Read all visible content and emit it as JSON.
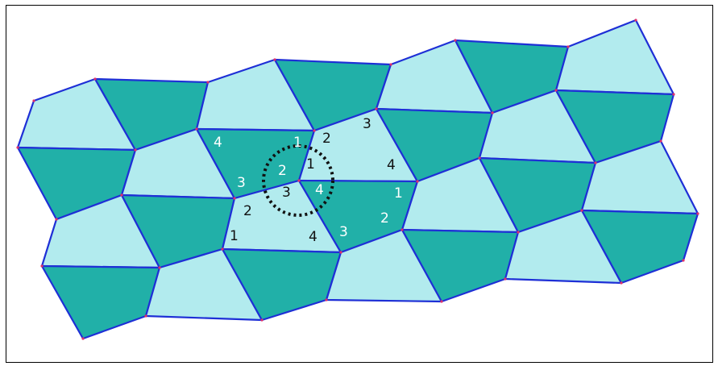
{
  "colors": {
    "light": "#b2ebee",
    "dark": "#21b0a8",
    "edge": "#1e2fd6",
    "label_dark": "#111111",
    "label_light": "#ffffff",
    "circle": "#111111"
  },
  "labels": {
    "l1": "4",
    "l2": "1",
    "l3": "2",
    "l4": "3",
    "l5": "2",
    "l6": "1",
    "l7": "4",
    "l8": "3",
    "l9": "3",
    "l10": "4",
    "l11": "1",
    "l12": "2",
    "l13": "2",
    "l14": "1",
    "l15": "4",
    "l16": "3"
  }
}
